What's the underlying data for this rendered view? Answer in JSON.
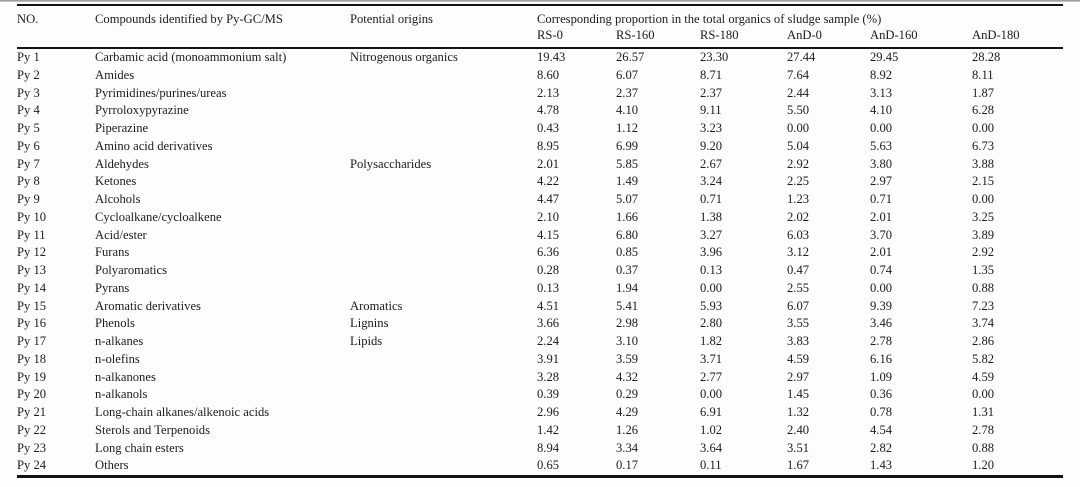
{
  "table": {
    "columns": {
      "no": "NO.",
      "compound": "Compounds identified by Py-GC/MS",
      "origin": "Potential origins",
      "proportion_group": "Corresponding proportion in the total organics of sludge sample (%)",
      "samples": [
        "RS-0",
        "RS-160",
        "RS-180",
        "AnD-0",
        "AnD-160",
        "AnD-180"
      ]
    },
    "rows": [
      {
        "no": "Py 1",
        "compound": "Carbamic acid (monoammonium salt)",
        "origin": "Nitrogenous organics",
        "values": [
          "19.43",
          "26.57",
          "23.30",
          "27.44",
          "29.45",
          "28.28"
        ]
      },
      {
        "no": "Py 2",
        "compound": "Amides",
        "origin": "",
        "values": [
          "8.60",
          "6.07",
          "8.71",
          "7.64",
          "8.92",
          "8.11"
        ]
      },
      {
        "no": "Py 3",
        "compound": "Pyrimidines/purines/ureas",
        "origin": "",
        "values": [
          "2.13",
          "2.37",
          "2.37",
          "2.44",
          "3.13",
          "1.87"
        ]
      },
      {
        "no": "Py 4",
        "compound": "Pyrroloxypyrazine",
        "origin": "",
        "values": [
          "4.78",
          "4.10",
          "9.11",
          "5.50",
          "4.10",
          "6.28"
        ]
      },
      {
        "no": "Py 5",
        "compound": "Piperazine",
        "origin": "",
        "values": [
          "0.43",
          "1.12",
          "3.23",
          "0.00",
          "0.00",
          "0.00"
        ]
      },
      {
        "no": "Py 6",
        "compound": "Amino acid derivatives",
        "origin": "",
        "values": [
          "8.95",
          "6.99",
          "9.20",
          "5.04",
          "5.63",
          "6.73"
        ]
      },
      {
        "no": "Py 7",
        "compound": "Aldehydes",
        "origin": "Polysaccharides",
        "values": [
          "2.01",
          "5.85",
          "2.67",
          "2.92",
          "3.80",
          "3.88"
        ]
      },
      {
        "no": "Py 8",
        "compound": "Ketones",
        "origin": "",
        "values": [
          "4.22",
          "1.49",
          "3.24",
          "2.25",
          "2.97",
          "2.15"
        ]
      },
      {
        "no": "Py 9",
        "compound": "Alcohols",
        "origin": "",
        "values": [
          "4.47",
          "5.07",
          "0.71",
          "1.23",
          "0.71",
          "0.00"
        ]
      },
      {
        "no": "Py 10",
        "compound": "Cycloalkane/cycloalkene",
        "origin": "",
        "values": [
          "2.10",
          "1.66",
          "1.38",
          "2.02",
          "2.01",
          "3.25"
        ]
      },
      {
        "no": "Py 11",
        "compound": "Acid/ester",
        "origin": "",
        "values": [
          "4.15",
          "6.80",
          "3.27",
          "6.03",
          "3.70",
          "3.89"
        ]
      },
      {
        "no": "Py 12",
        "compound": "Furans",
        "origin": "",
        "values": [
          "6.36",
          "0.85",
          "3.96",
          "3.12",
          "2.01",
          "2.92"
        ]
      },
      {
        "no": "Py 13",
        "compound": "Polyaromatics",
        "origin": "",
        "values": [
          "0.28",
          "0.37",
          "0.13",
          "0.47",
          "0.74",
          "1.35"
        ]
      },
      {
        "no": "Py 14",
        "compound": "Pyrans",
        "origin": "",
        "values": [
          "0.13",
          "1.94",
          "0.00",
          "2.55",
          "0.00",
          "0.88"
        ]
      },
      {
        "no": "Py 15",
        "compound": "Aromatic derivatives",
        "origin": "Aromatics",
        "values": [
          "4.51",
          "5.41",
          "5.93",
          "6.07",
          "9.39",
          "7.23"
        ]
      },
      {
        "no": "Py 16",
        "compound": "Phenols",
        "origin": "Lignins",
        "values": [
          "3.66",
          "2.98",
          "2.80",
          "3.55",
          "3.46",
          "3.74"
        ]
      },
      {
        "no": "Py 17",
        "compound": "n-alkanes",
        "origin": "Lipids",
        "values": [
          "2.24",
          "3.10",
          "1.82",
          "3.83",
          "2.78",
          "2.86"
        ]
      },
      {
        "no": "Py 18",
        "compound": "n-olefins",
        "origin": "",
        "values": [
          "3.91",
          "3.59",
          "3.71",
          "4.59",
          "6.16",
          "5.82"
        ]
      },
      {
        "no": "Py 19",
        "compound": "n-alkanones",
        "origin": "",
        "values": [
          "3.28",
          "4.32",
          "2.77",
          "2.97",
          "1.09",
          "4.59"
        ]
      },
      {
        "no": "Py 20",
        "compound": "n-alkanols",
        "origin": "",
        "values": [
          "0.39",
          "0.29",
          "0.00",
          "1.45",
          "0.36",
          "0.00"
        ]
      },
      {
        "no": "Py 21",
        "compound": "Long-chain alkanes/alkenoic acids",
        "origin": "",
        "values": [
          "2.96",
          "4.29",
          "6.91",
          "1.32",
          "0.78",
          "1.31"
        ]
      },
      {
        "no": "Py 22",
        "compound": "Sterols and Terpenoids",
        "origin": "",
        "values": [
          "1.42",
          "1.26",
          "1.02",
          "2.40",
          "4.54",
          "2.78"
        ]
      },
      {
        "no": "Py 23",
        "compound": "Long chain esters",
        "origin": "",
        "values": [
          "8.94",
          "3.34",
          "3.64",
          "3.51",
          "2.82",
          "0.88"
        ]
      },
      {
        "no": "Py 24",
        "compound": "Others",
        "origin": "",
        "values": [
          "0.65",
          "0.17",
          "0.11",
          "1.67",
          "1.43",
          "1.20"
        ]
      }
    ]
  },
  "chart_data": {
    "type": "table",
    "title": "Corresponding proportion in the total organics of sludge sample (%)",
    "columns": [
      "NO.",
      "Compounds identified by Py-GC/MS",
      "Potential origins",
      "RS-0",
      "RS-160",
      "RS-180",
      "AnD-0",
      "AnD-160",
      "AnD-180"
    ],
    "rows": [
      [
        "Py 1",
        "Carbamic acid (monoammonium salt)",
        "Nitrogenous organics",
        19.43,
        26.57,
        23.3,
        27.44,
        29.45,
        28.28
      ],
      [
        "Py 2",
        "Amides",
        "",
        8.6,
        6.07,
        8.71,
        7.64,
        8.92,
        8.11
      ],
      [
        "Py 3",
        "Pyrimidines/purines/ureas",
        "",
        2.13,
        2.37,
        2.37,
        2.44,
        3.13,
        1.87
      ],
      [
        "Py 4",
        "Pyrroloxypyrazine",
        "",
        4.78,
        4.1,
        9.11,
        5.5,
        4.1,
        6.28
      ],
      [
        "Py 5",
        "Piperazine",
        "",
        0.43,
        1.12,
        3.23,
        0.0,
        0.0,
        0.0
      ],
      [
        "Py 6",
        "Amino acid derivatives",
        "",
        8.95,
        6.99,
        9.2,
        5.04,
        5.63,
        6.73
      ],
      [
        "Py 7",
        "Aldehydes",
        "Polysaccharides",
        2.01,
        5.85,
        2.67,
        2.92,
        3.8,
        3.88
      ],
      [
        "Py 8",
        "Ketones",
        "",
        4.22,
        1.49,
        3.24,
        2.25,
        2.97,
        2.15
      ],
      [
        "Py 9",
        "Alcohols",
        "",
        4.47,
        5.07,
        0.71,
        1.23,
        0.71,
        0.0
      ],
      [
        "Py 10",
        "Cycloalkane/cycloalkene",
        "",
        2.1,
        1.66,
        1.38,
        2.02,
        2.01,
        3.25
      ],
      [
        "Py 11",
        "Acid/ester",
        "",
        4.15,
        6.8,
        3.27,
        6.03,
        3.7,
        3.89
      ],
      [
        "Py 12",
        "Furans",
        "",
        6.36,
        0.85,
        3.96,
        3.12,
        2.01,
        2.92
      ],
      [
        "Py 13",
        "Polyaromatics",
        "",
        0.28,
        0.37,
        0.13,
        0.47,
        0.74,
        1.35
      ],
      [
        "Py 14",
        "Pyrans",
        "",
        0.13,
        1.94,
        0.0,
        2.55,
        0.0,
        0.88
      ],
      [
        "Py 15",
        "Aromatic derivatives",
        "Aromatics",
        4.51,
        5.41,
        5.93,
        6.07,
        9.39,
        7.23
      ],
      [
        "Py 16",
        "Phenols",
        "Lignins",
        3.66,
        2.98,
        2.8,
        3.55,
        3.46,
        3.74
      ],
      [
        "Py 17",
        "n-alkanes",
        "Lipids",
        2.24,
        3.1,
        1.82,
        3.83,
        2.78,
        2.86
      ],
      [
        "Py 18",
        "n-olefins",
        "",
        3.91,
        3.59,
        3.71,
        4.59,
        6.16,
        5.82
      ],
      [
        "Py 19",
        "n-alkanones",
        "",
        3.28,
        4.32,
        2.77,
        2.97,
        1.09,
        4.59
      ],
      [
        "Py 20",
        "n-alkanols",
        "",
        0.39,
        0.29,
        0.0,
        1.45,
        0.36,
        0.0
      ],
      [
        "Py 21",
        "Long-chain alkanes/alkenoic acids",
        "",
        2.96,
        4.29,
        6.91,
        1.32,
        0.78,
        1.31
      ],
      [
        "Py 22",
        "Sterols and Terpenoids",
        "",
        1.42,
        1.26,
        1.02,
        2.4,
        4.54,
        2.78
      ],
      [
        "Py 23",
        "Long chain esters",
        "",
        8.94,
        3.34,
        3.64,
        3.51,
        2.82,
        0.88
      ],
      [
        "Py 24",
        "Others",
        "",
        0.65,
        0.17,
        0.11,
        1.67,
        1.43,
        1.2
      ]
    ]
  }
}
